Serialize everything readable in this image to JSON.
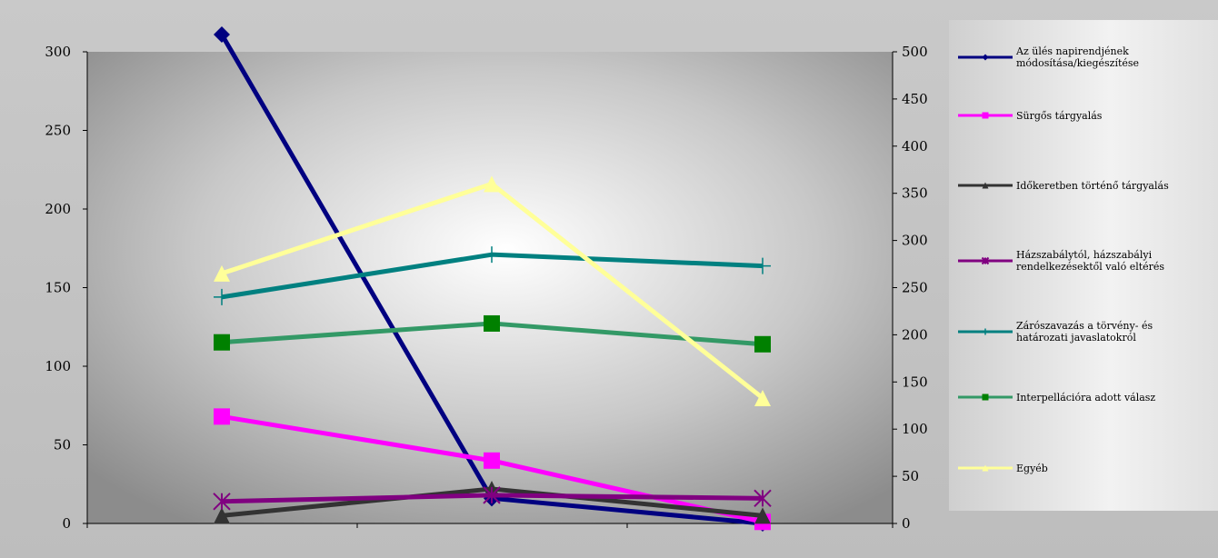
{
  "chart_data": {
    "type": "line",
    "title": "",
    "xlabel": "",
    "ylabel": "",
    "x": [
      "",
      "",
      ""
    ],
    "left_axis": {
      "ylim": [
        0,
        300
      ],
      "ticks": [
        0,
        50,
        100,
        150,
        200,
        250,
        300
      ]
    },
    "right_axis": {
      "ylim": [
        0,
        500
      ],
      "ticks": [
        0,
        50,
        100,
        150,
        200,
        250,
        300,
        350,
        400,
        450,
        500
      ]
    },
    "grid": false,
    "legend_position": "right",
    "series": [
      {
        "name": "Az ülés napirendjének módosítása/kiegészítése",
        "axis": "left",
        "color": "#000080",
        "marker": "diamond",
        "values": [
          311,
          16,
          0
        ]
      },
      {
        "name": "Sürgős tárgyalás",
        "axis": "left",
        "color": "#ff00ff",
        "marker": "square",
        "values": [
          68,
          40,
          1
        ]
      },
      {
        "name": "Időkeretben történő tárgyalás",
        "axis": "left",
        "color": "#333333",
        "marker": "triangle",
        "values": [
          5,
          22,
          5
        ]
      },
      {
        "name": "Házszabálytól, házszabályi rendelkezésektől való eltérés",
        "axis": "left",
        "color": "#800080",
        "marker": "star",
        "values": [
          14,
          18,
          16
        ]
      },
      {
        "name": "Zárószavazás a törvény- és határozati javaslatokról",
        "axis": "right",
        "color": "#008080",
        "marker": "plus",
        "values": [
          240,
          285,
          273
        ]
      },
      {
        "name": "Interpellációra adott válasz",
        "axis": "right",
        "color": "#339966",
        "marker": "square",
        "marker_color": "#008000",
        "values": [
          192,
          212,
          190
        ]
      },
      {
        "name": "Egyéb",
        "axis": "right",
        "color": "#ffff99",
        "marker": "triangle",
        "values": [
          265,
          360,
          133
        ]
      }
    ]
  }
}
